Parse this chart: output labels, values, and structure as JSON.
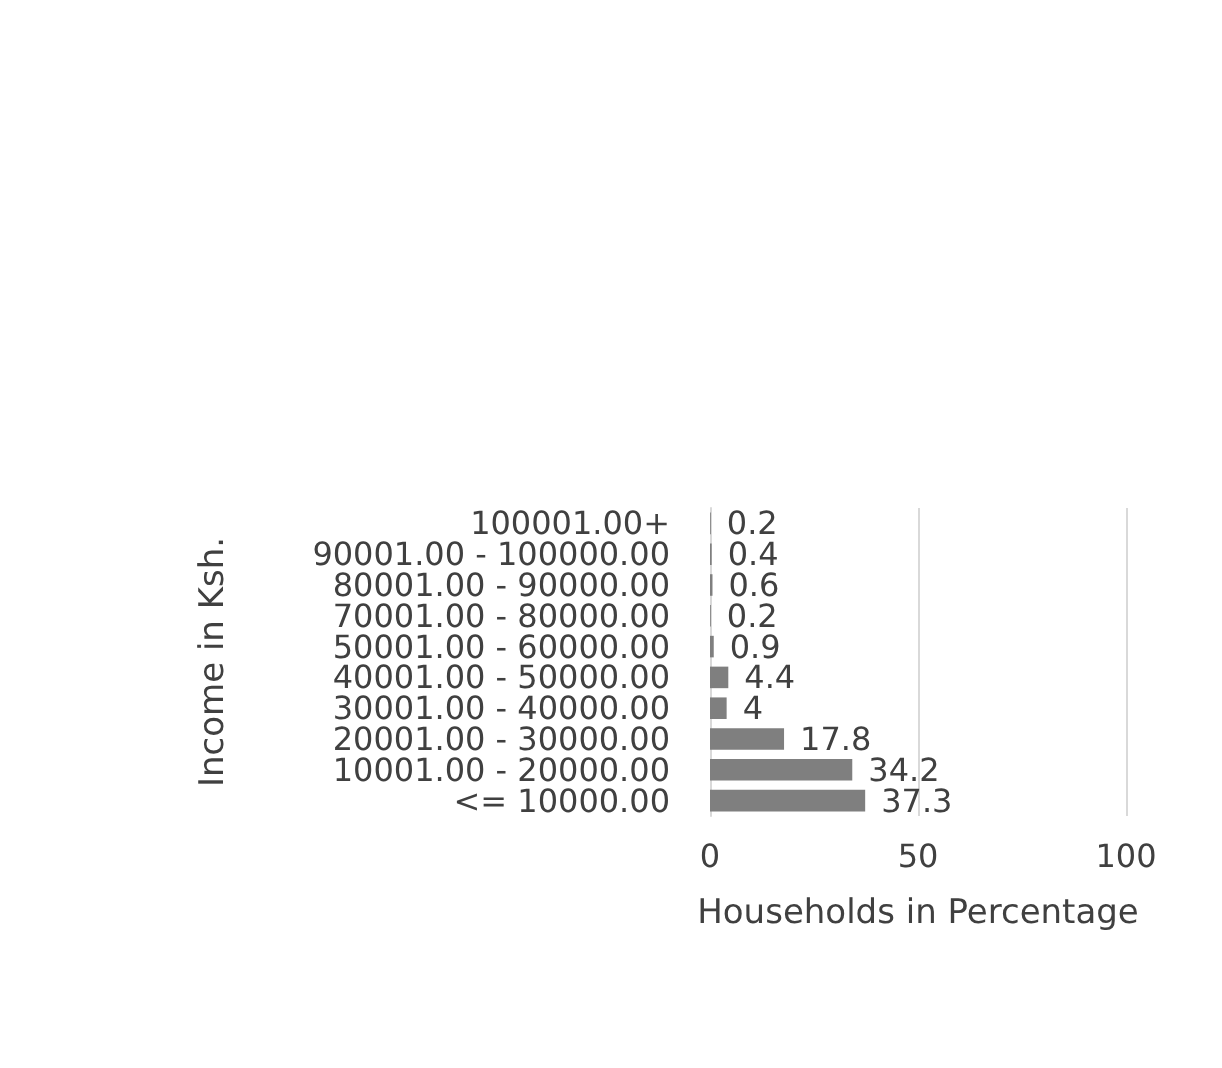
{
  "chart_data": {
    "type": "bar",
    "orientation": "horizontal",
    "ylabel": "Income in Ksh.",
    "xlabel": "Households in Percentage",
    "categories": [
      "100001.00+",
      "90001.00 - 100000.00",
      "80001.00 - 90000.00",
      "70001.00 - 80000.00",
      "50001.00 - 60000.00",
      "40001.00 - 50000.00",
      "30001.00 - 40000.00",
      "20001.00 - 30000.00",
      "10001.00 - 20000.00",
      "<= 10000.00"
    ],
    "values": [
      0.2,
      0.4,
      0.6,
      0.2,
      0.9,
      4.4,
      4,
      17.8,
      34.2,
      37.3
    ],
    "color": "#7f7f7f",
    "xlim": [
      0,
      100
    ],
    "xticks": [
      0,
      50,
      100
    ],
    "grid": "x",
    "data_labels": true
  }
}
